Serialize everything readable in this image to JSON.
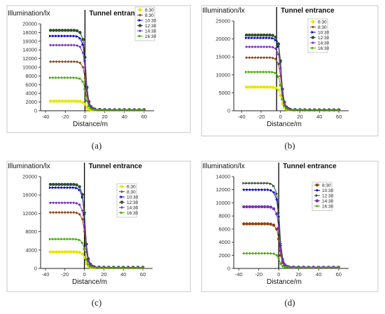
{
  "chart_data": [
    {
      "type": "line",
      "panel_label": "(a)",
      "title": "Tunnel entrance",
      "xlabel": "Distance/m",
      "ylabel": "Illumination/lx",
      "xlim": [
        -45,
        70
      ],
      "ylim": [
        0,
        20000
      ],
      "xticks": [
        -40,
        -20,
        0,
        20,
        40,
        60
      ],
      "xtick_labels": [
        "-40",
        "-20",
        "0",
        "20",
        "40",
        "60"
      ],
      "yticks": [
        0,
        2000,
        4000,
        6000,
        8000,
        10000,
        12000,
        14000,
        16000,
        18000,
        20000
      ],
      "ytick_labels": [
        "0",
        "2000",
        "4000",
        "6000",
        "8000",
        "10000",
        "12000",
        "14000",
        "16000",
        "18000",
        "20000"
      ],
      "entrance_x": 0,
      "legend_position": "top-right",
      "x": [
        -35,
        -32,
        -29,
        -26,
        -23,
        -20,
        -17,
        -14,
        -11,
        -8,
        -5,
        -2,
        0,
        2,
        4,
        6,
        8,
        10,
        15,
        20,
        25,
        30,
        35,
        40,
        45,
        50,
        55,
        60
      ],
      "series": [
        {
          "name": "6:30",
          "color": "#e6e600",
          "values": [
            2200,
            2200,
            2200,
            2200,
            2200,
            2200,
            2200,
            2200,
            2200,
            2190,
            2150,
            1900,
            1500,
            700,
            350,
            250,
            200,
            180,
            160,
            150,
            150,
            150,
            150,
            150,
            150,
            150,
            150,
            150
          ]
        },
        {
          "name": "8:30",
          "color": "#8b4513",
          "values": [
            11300,
            11300,
            11300,
            11300,
            11300,
            11300,
            11300,
            11300,
            11300,
            11250,
            11000,
            10000,
            7500,
            3500,
            1500,
            700,
            400,
            300,
            250,
            220,
            200,
            200,
            200,
            200,
            200,
            200,
            200,
            200
          ]
        },
        {
          "name": "10:30",
          "color": "#0000cc",
          "values": [
            17200,
            17200,
            17200,
            17200,
            17200,
            17200,
            17200,
            17200,
            17200,
            17100,
            16700,
            15200,
            11500,
            5000,
            2000,
            900,
            500,
            350,
            280,
            250,
            240,
            230,
            230,
            230,
            230,
            230,
            230,
            230
          ]
        },
        {
          "name": "12:30",
          "color": "#2f4f2f",
          "values": [
            18500,
            18500,
            18500,
            18500,
            18500,
            18500,
            18500,
            18500,
            18500,
            18400,
            18000,
            16400,
            12300,
            5400,
            2100,
            950,
            520,
            360,
            290,
            260,
            250,
            240,
            240,
            240,
            240,
            240,
            240,
            240
          ]
        },
        {
          "name": "14:30",
          "color": "#7b2fbe",
          "values": [
            15100,
            15100,
            15100,
            15100,
            15100,
            15100,
            15100,
            15100,
            15100,
            15000,
            14700,
            13300,
            10000,
            4400,
            1800,
            800,
            450,
            320,
            270,
            240,
            230,
            220,
            220,
            220,
            220,
            220,
            220,
            220
          ]
        },
        {
          "name": "16:30",
          "color": "#44aa00",
          "values": [
            7600,
            7600,
            7600,
            7600,
            7600,
            7600,
            7600,
            7600,
            7600,
            7550,
            7400,
            6700,
            5000,
            2300,
            1000,
            500,
            300,
            240,
            200,
            180,
            170,
            170,
            170,
            170,
            170,
            170,
            170,
            170
          ]
        }
      ]
    },
    {
      "type": "line",
      "panel_label": "(b)",
      "title": "Tunnel entrance",
      "xlabel": "Distance/m",
      "ylabel": "Illumination/lx",
      "xlim": [
        -48,
        70
      ],
      "ylim": [
        0,
        25000
      ],
      "xticks": [
        -40,
        -20,
        0,
        20,
        40,
        60
      ],
      "xtick_labels": [
        "-40",
        "-20",
        "0",
        "20",
        "40",
        "60"
      ],
      "yticks": [
        0,
        5000,
        10000,
        15000,
        20000,
        25000
      ],
      "ytick_labels": [
        "0",
        "5000",
        "10000",
        "15000",
        "20000",
        "25000"
      ],
      "entrance_x": -4,
      "legend_position": "top-right",
      "x": [
        -35,
        -32,
        -29,
        -26,
        -23,
        -20,
        -17,
        -14,
        -11,
        -8,
        -5,
        -2,
        0,
        2,
        4,
        6,
        8,
        10,
        15,
        20,
        25,
        30,
        35,
        40,
        45,
        50,
        55,
        60
      ],
      "series": [
        {
          "name": "6:30",
          "color": "#e6e600",
          "values": [
            6600,
            6600,
            6600,
            6600,
            6600,
            6600,
            6600,
            6600,
            6600,
            6550,
            6400,
            5800,
            4300,
            2000,
            900,
            450,
            300,
            240,
            200,
            180,
            170,
            170,
            170,
            170,
            170,
            170,
            170,
            170
          ]
        },
        {
          "name": "8:30",
          "color": "#8b4513",
          "values": [
            14800,
            14800,
            14800,
            14800,
            14800,
            14800,
            14800,
            14800,
            14800,
            14700,
            14400,
            13000,
            9700,
            4300,
            1700,
            800,
            450,
            320,
            260,
            240,
            230,
            220,
            220,
            220,
            220,
            220,
            220,
            220
          ]
        },
        {
          "name": "10:30",
          "color": "#0000cc",
          "values": [
            20300,
            20300,
            20300,
            20300,
            20300,
            20300,
            20300,
            20300,
            20300,
            20200,
            19700,
            17900,
            13400,
            5800,
            2300,
            1000,
            560,
            380,
            300,
            270,
            260,
            250,
            250,
            250,
            250,
            250,
            250,
            250
          ]
        },
        {
          "name": "12:30",
          "color": "#2f4f2f",
          "values": [
            21100,
            21100,
            21100,
            21100,
            21100,
            21100,
            21100,
            21100,
            21100,
            21000,
            20500,
            18600,
            13900,
            6000,
            2400,
            1050,
            580,
            390,
            310,
            280,
            265,
            255,
            255,
            255,
            255,
            255,
            255,
            255
          ]
        },
        {
          "name": "14:30",
          "color": "#7b2fbe",
          "values": [
            17800,
            17800,
            17800,
            17800,
            17800,
            17800,
            17800,
            17800,
            17800,
            17700,
            17300,
            15700,
            11800,
            5100,
            2000,
            900,
            500,
            350,
            280,
            250,
            240,
            235,
            235,
            235,
            235,
            235,
            235,
            235
          ]
        },
        {
          "name": "16:30",
          "color": "#44aa00",
          "values": [
            10800,
            10800,
            10800,
            10800,
            10800,
            10800,
            10800,
            10800,
            10800,
            10750,
            10500,
            9500,
            7100,
            3200,
            1300,
            600,
            350,
            270,
            220,
            200,
            190,
            190,
            190,
            190,
            190,
            190,
            190,
            190
          ]
        }
      ]
    },
    {
      "type": "line",
      "panel_label": "(c)",
      "title": "Tunnel entrance",
      "xlabel": "Distance/m",
      "ylabel": "Illumination/lx",
      "xlim": [
        -45,
        70
      ],
      "ylim": [
        0,
        20000
      ],
      "xticks": [
        -40,
        -20,
        0,
        20,
        40,
        60
      ],
      "xtick_labels": [
        "-40",
        "-20",
        "0",
        "20",
        "40",
        "60"
      ],
      "yticks": [
        0,
        4000,
        8000,
        12000,
        16000,
        20000
      ],
      "ytick_labels": [
        "0",
        "4000",
        "8000",
        "12000",
        "16000",
        "20000"
      ],
      "entrance_x": 0,
      "legend_position": "top-right",
      "x": [
        -35,
        -32,
        -29,
        -26,
        -23,
        -20,
        -17,
        -14,
        -11,
        -8,
        -5,
        -2,
        0,
        2,
        4,
        6,
        8,
        10,
        15,
        20,
        25,
        30,
        35,
        40,
        45,
        50,
        55,
        60
      ],
      "series": [
        {
          "name": "6:30",
          "color": "#e6e600",
          "values": [
            3600,
            3600,
            3600,
            3600,
            3600,
            3600,
            3600,
            3600,
            3600,
            3580,
            3500,
            3150,
            2400,
            1100,
            500,
            280,
            200,
            170,
            150,
            140,
            140,
            140,
            140,
            140,
            140,
            140,
            140,
            140
          ]
        },
        {
          "name": "8:30",
          "color": "#8b4513",
          "values": [
            12200,
            12200,
            12200,
            12200,
            12200,
            12200,
            12200,
            12200,
            12200,
            12100,
            11800,
            10700,
            8000,
            3600,
            1500,
            700,
            400,
            300,
            250,
            220,
            210,
            200,
            200,
            200,
            200,
            200,
            200,
            200
          ]
        },
        {
          "name": "10:30",
          "color": "#0000cc",
          "values": [
            17600,
            17600,
            17600,
            17600,
            17600,
            17600,
            17600,
            17600,
            17600,
            17500,
            17100,
            15500,
            11700,
            5100,
            2000,
            900,
            500,
            350,
            280,
            250,
            240,
            230,
            230,
            230,
            230,
            230,
            230,
            230
          ]
        },
        {
          "name": "12:30",
          "color": "#2f4f2f",
          "values": [
            18300,
            18300,
            18300,
            18300,
            18300,
            18300,
            18300,
            18300,
            18300,
            18200,
            17800,
            16100,
            12100,
            5300,
            2100,
            950,
            520,
            360,
            290,
            260,
            250,
            240,
            240,
            240,
            240,
            240,
            240,
            240
          ]
        },
        {
          "name": "14:30",
          "color": "#7b2fbe",
          "values": [
            14300,
            14300,
            14300,
            14300,
            14300,
            14300,
            14300,
            14300,
            14300,
            14200,
            13900,
            12600,
            9500,
            4200,
            1700,
            780,
            440,
            320,
            260,
            235,
            225,
            215,
            215,
            215,
            215,
            215,
            215,
            215
          ]
        },
        {
          "name": "16:30",
          "color": "#44aa00",
          "values": [
            6400,
            6400,
            6400,
            6400,
            6400,
            6400,
            6400,
            6400,
            6400,
            6350,
            6200,
            5600,
            4200,
            1900,
            850,
            420,
            280,
            220,
            190,
            175,
            170,
            165,
            165,
            165,
            165,
            165,
            165,
            165
          ]
        }
      ]
    },
    {
      "type": "line",
      "panel_label": "(d)",
      "title": "Tunnel entrance",
      "xlabel": "Distance/m",
      "ylabel": "Illumination/lx",
      "xlim": [
        -45,
        70
      ],
      "ylim": [
        0,
        14000
      ],
      "xticks": [
        -40,
        -20,
        0,
        20,
        40,
        60
      ],
      "xtick_labels": [
        "-40",
        "-20",
        "0",
        "20",
        "40",
        "60"
      ],
      "yticks": [
        0,
        2000,
        4000,
        6000,
        8000,
        10000,
        12000,
        14000
      ],
      "ytick_labels": [
        "0",
        "2000",
        "4000",
        "6000",
        "8000",
        "10000",
        "12000",
        "14000"
      ],
      "entrance_x": 0,
      "legend_position": "top-right",
      "x": [
        -35,
        -32,
        -29,
        -26,
        -23,
        -20,
        -17,
        -14,
        -11,
        -8,
        -5,
        -2,
        0,
        2,
        4,
        6,
        8,
        10,
        15,
        20,
        25,
        30,
        35,
        40,
        45,
        50,
        55,
        60
      ],
      "series": [
        {
          "name": "8:30",
          "color": "#8b4513",
          "values": [
            6800,
            6800,
            6800,
            6800,
            6800,
            6800,
            6800,
            6800,
            6800,
            6750,
            6600,
            6000,
            4500,
            2000,
            900,
            450,
            280,
            220,
            190,
            175,
            170,
            165,
            165,
            165,
            165,
            165,
            165,
            165
          ]
        },
        {
          "name": "10:30",
          "color": "#0000cc",
          "values": [
            12000,
            12000,
            12000,
            12000,
            12000,
            12000,
            12000,
            12000,
            12000,
            11900,
            11600,
            10500,
            7900,
            3500,
            1400,
            650,
            380,
            280,
            230,
            210,
            200,
            195,
            195,
            195,
            195,
            195,
            195,
            195
          ]
        },
        {
          "name": "12:30",
          "color": "#2f4f2f",
          "values": [
            13000,
            13000,
            13000,
            13000,
            13000,
            13000,
            13000,
            13000,
            13000,
            12900,
            12600,
            11400,
            8500,
            3800,
            1500,
            700,
            400,
            300,
            240,
            220,
            210,
            200,
            200,
            200,
            200,
            200,
            200,
            200
          ]
        },
        {
          "name": "14:30",
          "color": "#7b2fbe",
          "values": [
            9400,
            9400,
            9400,
            9400,
            9400,
            9400,
            9400,
            9400,
            9400,
            9350,
            9100,
            8300,
            6200,
            2700,
            1100,
            520,
            320,
            250,
            210,
            190,
            185,
            180,
            180,
            180,
            180,
            180,
            180,
            180
          ]
        },
        {
          "name": "16:30",
          "color": "#44aa00",
          "values": [
            2300,
            2300,
            2300,
            2300,
            2300,
            2300,
            2300,
            2300,
            2300,
            2290,
            2240,
            2000,
            1500,
            700,
            330,
            220,
            170,
            150,
            140,
            135,
            130,
            130,
            130,
            130,
            130,
            130,
            130,
            130
          ]
        }
      ]
    }
  ]
}
